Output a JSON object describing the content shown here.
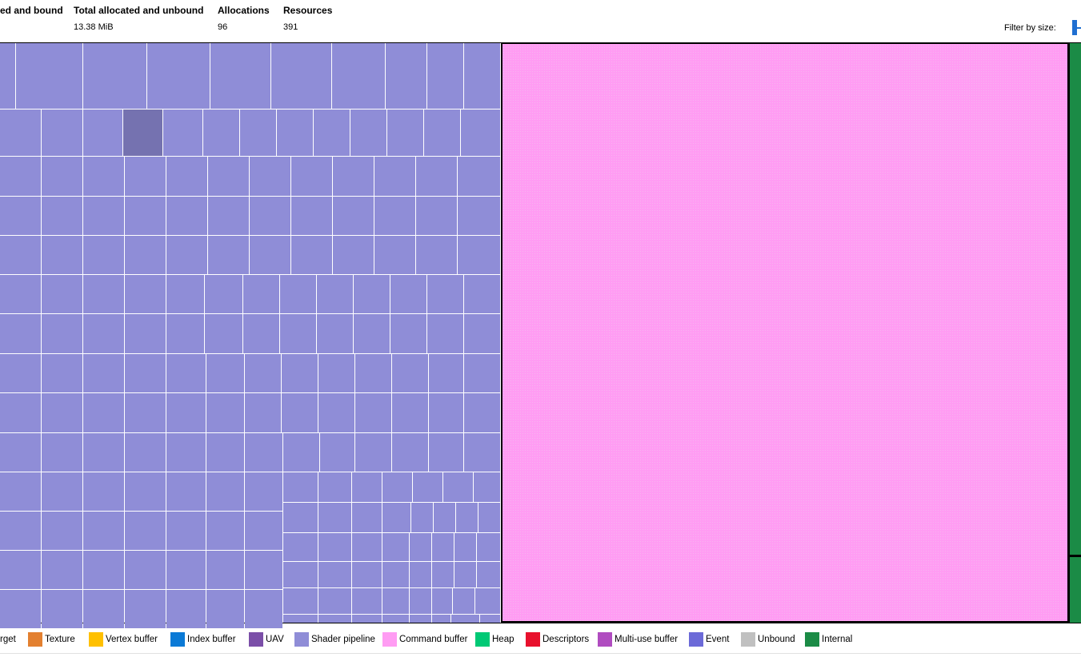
{
  "header": {
    "stats": [
      {
        "heading": "ed and bound",
        "value": ""
      },
      {
        "heading": "Total allocated and unbound",
        "value": "13.38 MiB"
      },
      {
        "heading": "Allocations",
        "value": "96"
      },
      {
        "heading": "Resources",
        "value": "391"
      }
    ],
    "filter_label": "Filter by size:"
  },
  "treemap": {
    "regions": [
      {
        "type": "Shader pipeline",
        "color": "#8f8dd7"
      },
      {
        "type": "Command buffer",
        "color": "#ff9cf3"
      },
      {
        "type": "Internal",
        "color": "#1b8b46"
      }
    ],
    "highlight_color": "#7572b0"
  },
  "legend": [
    {
      "label": "rget",
      "color": ""
    },
    {
      "label": "Texture",
      "color": "#e38030"
    },
    {
      "label": "Vertex buffer",
      "color": "#ffc000"
    },
    {
      "label": "Index buffer",
      "color": "#0b7ad6"
    },
    {
      "label": "UAV",
      "color": "#7b4fa8"
    },
    {
      "label": "Shader pipeline",
      "color": "#8f8dd7"
    },
    {
      "label": "Command buffer",
      "color": "#ff9cf3"
    },
    {
      "label": "Heap",
      "color": "#00c975"
    },
    {
      "label": "Descriptors",
      "color": "#e8112d"
    },
    {
      "label": "Multi-use buffer",
      "color": "#b04cc0"
    },
    {
      "label": "Event",
      "color": "#6c6ad8"
    },
    {
      "label": "Unbound",
      "color": "#c0c0c0"
    },
    {
      "label": "Internal",
      "color": "#1b8b46"
    }
  ]
}
